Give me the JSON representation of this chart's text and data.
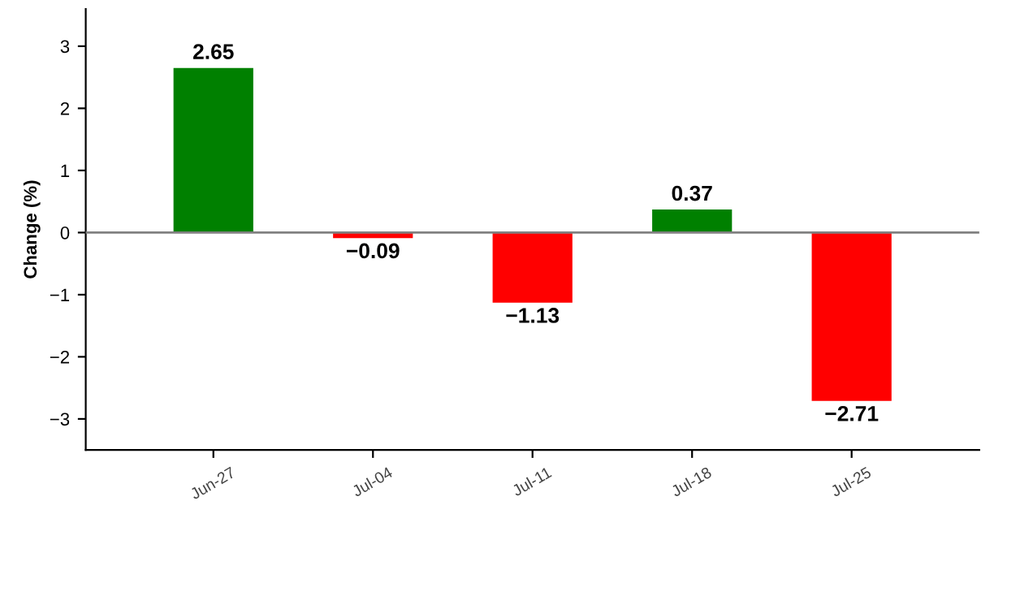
{
  "chart_data": {
    "type": "bar",
    "ylabel": "Change (%)",
    "categories": [
      "Jun-27",
      "Jul-04",
      "Jul-11",
      "Jul-18",
      "Jul-25"
    ],
    "values": [
      2.65,
      -0.09,
      -1.13,
      0.37,
      -2.71
    ],
    "colors": [
      "#008000",
      "#ff0000",
      "#ff0000",
      "#008000",
      "#ff0000"
    ],
    "value_labels": [
      "2.65",
      "−0.09",
      "−1.13",
      "0.37",
      "−2.71"
    ],
    "ylim": [
      -3.5,
      3.6
    ],
    "yticks": [
      {
        "value": -3,
        "label": "−3"
      },
      {
        "value": -2,
        "label": "−2"
      },
      {
        "value": -1,
        "label": "−1"
      },
      0,
      1,
      2,
      3
    ],
    "ref_lines": [
      {
        "axis": "y",
        "value": 0,
        "color": "#808080"
      }
    ],
    "grid": false
  }
}
